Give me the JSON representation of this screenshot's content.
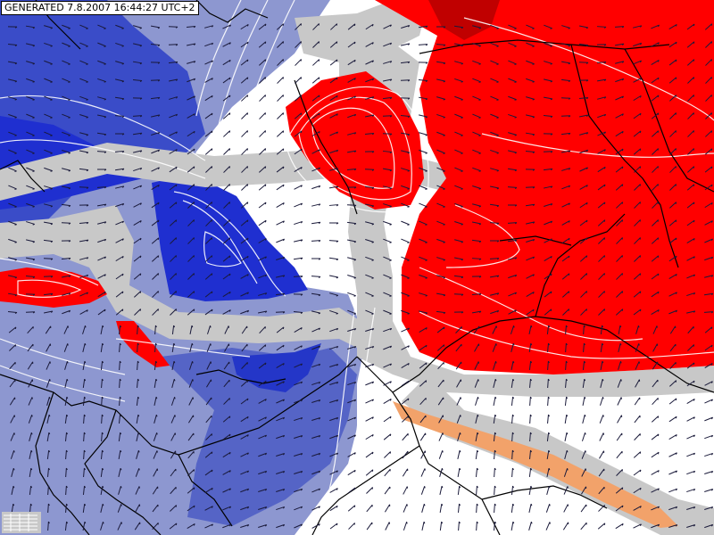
{
  "header": {
    "generated_label": "GENERATED 7.8.2007 16:44:27 UTC+2"
  },
  "map": {
    "type": "weather-anomaly-map",
    "features": [
      "color-filled field",
      "contour lines",
      "wind arrows",
      "country borders"
    ],
    "colors": {
      "strong_positive": "#ff0000",
      "extreme_positive": "#c00000",
      "strong_negative": "#1f2fd0",
      "moderate_negative": "#3a4cc8",
      "weak_negative": "#8d97d0",
      "neutral": "#ffffff",
      "transition_band": "#c8c8c8",
      "warm_fringe": "#f2a26a",
      "contour_line": "#ffffff",
      "border_line": "#000000",
      "arrow": "#1a1a3a"
    }
  }
}
